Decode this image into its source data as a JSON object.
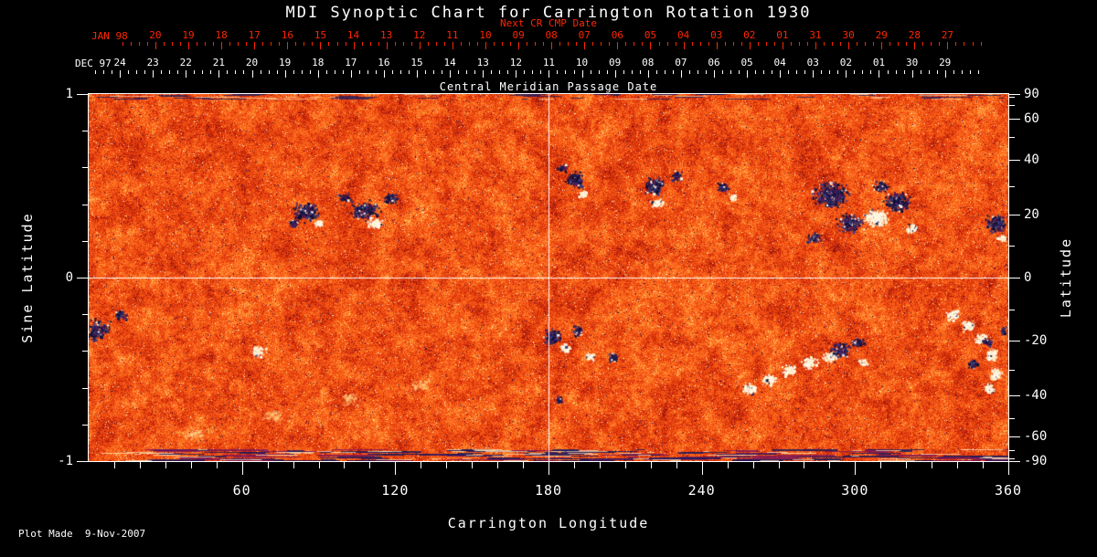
{
  "title": "MDI Synoptic Chart for Carrington Rotation 1930",
  "footer": "Plot Made  9-Nov-2007",
  "chart_data": {
    "type": "heatmap",
    "title": "MDI Synoptic Chart for Carrington Rotation 1930",
    "xlabel": "Carrington Longitude",
    "ylabel_left": "Sine Latitude",
    "ylabel_right": "Latitude",
    "xlim": [
      0,
      360
    ],
    "ylim": [
      -1,
      1
    ],
    "x_major_ticks": [
      60,
      120,
      180,
      240,
      300,
      360
    ],
    "x_minor_step": 10,
    "left_ticks": [
      1,
      0,
      -1
    ],
    "left_minor_step": 0.2,
    "right_ticks_deg": [
      90,
      60,
      40,
      20,
      0,
      -20,
      -40,
      -60,
      -90
    ],
    "right_minor_ticks_deg": [
      -80,
      -70,
      -50,
      -30,
      -10,
      10,
      30,
      50,
      70,
      80
    ],
    "crosshair": {
      "lon": 180,
      "sine_lat": 0
    },
    "grid": false,
    "top_axes": {
      "next_cr": {
        "label": "JAN 98",
        "sublabel": "Next CR CMP Date",
        "color": "#ff2600",
        "start_lon": 26.1,
        "step_lon": 12.92,
        "tick_labels": [
          "20",
          "19",
          "18",
          "17",
          "16",
          "15",
          "14",
          "13",
          "12",
          "11",
          "10",
          "09",
          "08",
          "07",
          "06",
          "05",
          "04",
          "03",
          "02",
          "01",
          "31",
          "30",
          "29",
          "28",
          "27"
        ]
      },
      "current_cr": {
        "label": "DEC 97",
        "sublabel": "Central Meridian Passage Date",
        "color": "#ffffff",
        "start_lon": 12.2,
        "step_lon": 12.92,
        "tick_labels": [
          "24",
          "23",
          "22",
          "21",
          "20",
          "19",
          "18",
          "17",
          "16",
          "15",
          "14",
          "13",
          "12",
          "11",
          "10",
          "09",
          "08",
          "07",
          "06",
          "05",
          "04",
          "03",
          "02",
          "01",
          "30",
          "29"
        ]
      }
    },
    "colors": {
      "background": "#000000",
      "frame": "#ffffff",
      "quiet_sun": "#f25812",
      "negative_polarity": "#1b1b4d",
      "positive_polarity": "#fff8e8",
      "date_axis_red": "#ff2600"
    },
    "active_regions": [
      {
        "lon": 85,
        "sin_lat": 0.36,
        "rx": 5,
        "ry": 0.05,
        "n": 300,
        "pol": "neg"
      },
      {
        "lon": 90,
        "sin_lat": 0.3,
        "rx": 2,
        "ry": 0.022,
        "n": 60,
        "pol": "pos"
      },
      {
        "lon": 80,
        "sin_lat": 0.3,
        "rx": 2,
        "ry": 0.02,
        "n": 45,
        "pol": "neg"
      },
      {
        "lon": 108,
        "sin_lat": 0.37,
        "rx": 6,
        "ry": 0.055,
        "n": 260,
        "pol": "neg"
      },
      {
        "lon": 112,
        "sin_lat": 0.3,
        "rx": 3,
        "ry": 0.03,
        "n": 100,
        "pol": "pos"
      },
      {
        "lon": 118,
        "sin_lat": 0.43,
        "rx": 3,
        "ry": 0.03,
        "n": 80,
        "pol": "neg"
      },
      {
        "lon": 100,
        "sin_lat": 0.44,
        "rx": 2.5,
        "ry": 0.025,
        "n": 60,
        "pol": "neg"
      },
      {
        "lon": 190,
        "sin_lat": 0.54,
        "rx": 3.5,
        "ry": 0.045,
        "n": 180,
        "pol": "neg"
      },
      {
        "lon": 193,
        "sin_lat": 0.46,
        "rx": 2,
        "ry": 0.02,
        "n": 45,
        "pol": "pos"
      },
      {
        "lon": 185,
        "sin_lat": 0.6,
        "rx": 2,
        "ry": 0.02,
        "n": 40,
        "pol": "neg"
      },
      {
        "lon": 221,
        "sin_lat": 0.5,
        "rx": 4,
        "ry": 0.05,
        "n": 240,
        "pol": "neg"
      },
      {
        "lon": 222,
        "sin_lat": 0.41,
        "rx": 2.5,
        "ry": 0.025,
        "n": 80,
        "pol": "pos"
      },
      {
        "lon": 230,
        "sin_lat": 0.56,
        "rx": 2,
        "ry": 0.03,
        "n": 55,
        "pol": "neg"
      },
      {
        "lon": 248,
        "sin_lat": 0.5,
        "rx": 2.5,
        "ry": 0.03,
        "n": 80,
        "pol": "neg"
      },
      {
        "lon": 252,
        "sin_lat": 0.44,
        "rx": 1.5,
        "ry": 0.018,
        "n": 30,
        "pol": "pos"
      },
      {
        "lon": 284,
        "sin_lat": 0.22,
        "rx": 3,
        "ry": 0.03,
        "n": 80,
        "pol": "neg"
      },
      {
        "lon": 290,
        "sin_lat": 0.45,
        "rx": 7,
        "ry": 0.07,
        "n": 480,
        "pol": "neg"
      },
      {
        "lon": 298,
        "sin_lat": 0.3,
        "rx": 5,
        "ry": 0.05,
        "n": 230,
        "pol": "neg"
      },
      {
        "lon": 308,
        "sin_lat": 0.33,
        "rx": 4.5,
        "ry": 0.045,
        "n": 330,
        "pol": "pos"
      },
      {
        "lon": 316,
        "sin_lat": 0.42,
        "rx": 5,
        "ry": 0.05,
        "n": 300,
        "pol": "neg"
      },
      {
        "lon": 322,
        "sin_lat": 0.27,
        "rx": 2.5,
        "ry": 0.03,
        "n": 70,
        "pol": "pos"
      },
      {
        "lon": 310,
        "sin_lat": 0.5,
        "rx": 3,
        "ry": 0.03,
        "n": 90,
        "pol": "neg"
      },
      {
        "lon": 355,
        "sin_lat": 0.3,
        "rx": 4,
        "ry": 0.05,
        "n": 200,
        "pol": "neg"
      },
      {
        "lon": 357,
        "sin_lat": 0.22,
        "rx": 2,
        "ry": 0.02,
        "n": 40,
        "pol": "pos"
      },
      {
        "lon": 3,
        "sin_lat": -0.28,
        "rx": 5,
        "ry": 0.06,
        "n": 220,
        "pol": "neg"
      },
      {
        "lon": 12,
        "sin_lat": -0.2,
        "rx": 2.5,
        "ry": 0.03,
        "n": 60,
        "pol": "neg"
      },
      {
        "lon": 66,
        "sin_lat": -0.4,
        "rx": 3,
        "ry": 0.035,
        "n": 80,
        "pol": "pos"
      },
      {
        "lon": 181,
        "sin_lat": -0.32,
        "rx": 3.5,
        "ry": 0.04,
        "n": 170,
        "pol": "neg"
      },
      {
        "lon": 186,
        "sin_lat": -0.38,
        "rx": 2,
        "ry": 0.025,
        "n": 70,
        "pol": "pos"
      },
      {
        "lon": 191,
        "sin_lat": -0.29,
        "rx": 2,
        "ry": 0.03,
        "n": 70,
        "pol": "neg"
      },
      {
        "lon": 196,
        "sin_lat": -0.43,
        "rx": 2,
        "ry": 0.02,
        "n": 50,
        "pol": "pos"
      },
      {
        "lon": 184,
        "sin_lat": -0.66,
        "rx": 1.5,
        "ry": 0.02,
        "n": 35,
        "pol": "neg"
      },
      {
        "lon": 205,
        "sin_lat": -0.43,
        "rx": 2,
        "ry": 0.025,
        "n": 55,
        "pol": "neg"
      },
      {
        "lon": 258,
        "sin_lat": -0.6,
        "rx": 3,
        "ry": 0.03,
        "n": 90,
        "pol": "pos"
      },
      {
        "lon": 266,
        "sin_lat": -0.55,
        "rx": 3,
        "ry": 0.03,
        "n": 90,
        "pol": "pos"
      },
      {
        "lon": 274,
        "sin_lat": -0.5,
        "rx": 3,
        "ry": 0.03,
        "n": 90,
        "pol": "pos"
      },
      {
        "lon": 282,
        "sin_lat": -0.46,
        "rx": 3,
        "ry": 0.03,
        "n": 90,
        "pol": "pos"
      },
      {
        "lon": 290,
        "sin_lat": -0.43,
        "rx": 3,
        "ry": 0.03,
        "n": 100,
        "pol": "pos"
      },
      {
        "lon": 294,
        "sin_lat": -0.39,
        "rx": 4,
        "ry": 0.04,
        "n": 200,
        "pol": "neg"
      },
      {
        "lon": 301,
        "sin_lat": -0.35,
        "rx": 2.5,
        "ry": 0.03,
        "n": 70,
        "pol": "neg"
      },
      {
        "lon": 303,
        "sin_lat": -0.46,
        "rx": 2,
        "ry": 0.022,
        "n": 45,
        "pol": "pos"
      },
      {
        "lon": 338,
        "sin_lat": -0.2,
        "rx": 2.5,
        "ry": 0.03,
        "n": 80,
        "pol": "pos"
      },
      {
        "lon": 344,
        "sin_lat": -0.26,
        "rx": 2.5,
        "ry": 0.03,
        "n": 90,
        "pol": "pos"
      },
      {
        "lon": 349,
        "sin_lat": -0.33,
        "rx": 2.5,
        "ry": 0.03,
        "n": 100,
        "pol": "pos"
      },
      {
        "lon": 353,
        "sin_lat": -0.42,
        "rx": 2.5,
        "ry": 0.035,
        "n": 100,
        "pol": "pos"
      },
      {
        "lon": 355,
        "sin_lat": -0.52,
        "rx": 2.5,
        "ry": 0.035,
        "n": 90,
        "pol": "pos"
      },
      {
        "lon": 352,
        "sin_lat": -0.6,
        "rx": 2.5,
        "ry": 0.03,
        "n": 70,
        "pol": "pos"
      },
      {
        "lon": 352,
        "sin_lat": -0.35,
        "rx": 2,
        "ry": 0.025,
        "n": 60,
        "pol": "neg"
      },
      {
        "lon": 346,
        "sin_lat": -0.47,
        "rx": 2,
        "ry": 0.025,
        "n": 55,
        "pol": "neg"
      },
      {
        "lon": 358,
        "sin_lat": -0.29,
        "rx": 1.5,
        "ry": 0.02,
        "n": 35,
        "pol": "neg"
      },
      {
        "lon": 40,
        "sin_lat": -0.85,
        "rx": 5,
        "ry": 0.04,
        "n": 70,
        "pol": "faint"
      },
      {
        "lon": 72,
        "sin_lat": -0.75,
        "rx": 5,
        "ry": 0.04,
        "n": 70,
        "pol": "faint"
      },
      {
        "lon": 102,
        "sin_lat": -0.66,
        "rx": 5,
        "ry": 0.04,
        "n": 70,
        "pol": "faint"
      },
      {
        "lon": 130,
        "sin_lat": -0.58,
        "rx": 5,
        "ry": 0.04,
        "n": 70,
        "pol": "faint"
      }
    ]
  }
}
